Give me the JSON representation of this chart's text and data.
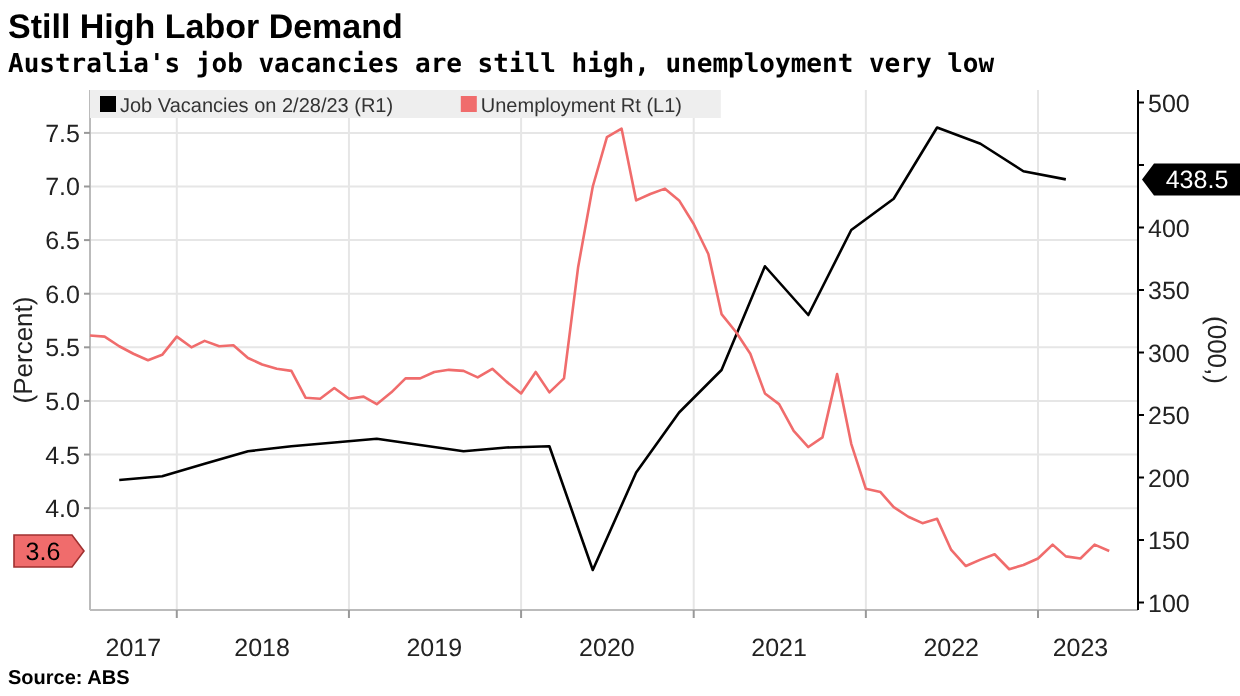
{
  "chart_data": {
    "type": "line",
    "title": "Still High Labor Demand",
    "subtitle": "Australia's job vacancies are still high, unemployment very low",
    "ylabel": "(Percent)",
    "y2label": "(000,)",
    "annotations": [
      "Source: ABS",
      "438.5",
      "3.6"
    ],
    "xlim": [
      "2017-07-01",
      "2023-08-01"
    ],
    "xticks": [
      {
        "value": "2018-01-01",
        "label": null
      },
      {
        "value": "2019-01-01",
        "label": null
      },
      {
        "value": "2020-01-01",
        "label": null
      },
      {
        "value": "2021-01-01",
        "label": null
      },
      {
        "value": "2022-01-01",
        "label": null
      },
      {
        "value": "2023-01-01",
        "label": null
      },
      {
        "value": "2017-10-01",
        "label": "2017"
      },
      {
        "value": "2018-07-01",
        "label": "2018"
      },
      {
        "value": "2019-07-01",
        "label": "2019"
      },
      {
        "value": "2020-07-01",
        "label": "2020"
      },
      {
        "value": "2021-07-01",
        "label": "2021"
      },
      {
        "value": "2022-07-01",
        "label": "2022"
      },
      {
        "value": "2023-04-01",
        "label": "2023"
      }
    ],
    "ylim": [
      3.05,
      7.9
    ],
    "yticks": [
      {
        "value": 4,
        "label": "4.0"
      },
      {
        "value": 4.5,
        "label": "4.5"
      },
      {
        "value": 5,
        "label": "5.0"
      },
      {
        "value": 5.5,
        "label": "5.5"
      },
      {
        "value": 6,
        "label": "6.0"
      },
      {
        "value": 6.5,
        "label": "6.5"
      },
      {
        "value": 7,
        "label": "7.0"
      },
      {
        "value": 7.5,
        "label": "7.5"
      }
    ],
    "y2lim": [
      94,
      510
    ],
    "y2ticks": [
      100,
      150,
      200,
      250,
      300,
      350,
      400,
      {
        "value": 450,
        "label": null
      },
      500
    ],
    "grid": true,
    "legend": "top left",
    "marker": "none",
    "line_style": "solid",
    "series": [
      {
        "name": "Job Vacancies on 2/28/23 (R1)",
        "color": "#000000",
        "axis": "y2",
        "x": [
          "2017-09",
          "2017-12",
          "2018-03",
          "2018-06",
          "2018-09",
          "2018-12",
          "2019-03",
          "2019-06",
          "2019-09",
          "2019-12",
          "2020-03",
          "2020-06",
          "2020-09",
          "2020-12",
          "2021-03",
          "2021-06",
          "2021-09",
          "2021-12",
          "2022-03",
          "2022-06",
          "2022-09",
          "2022-12",
          "2023-03"
        ],
        "values": [
          198,
          201,
          211,
          221,
          225,
          228,
          231,
          226,
          221,
          224,
          225,
          126,
          204,
          252,
          286,
          369,
          330,
          398,
          423,
          480,
          467,
          445,
          438.5
        ]
      },
      {
        "name": "Unemployment Rt (L1)",
        "color": "#f06c6c",
        "x": [
          "2017-07",
          "2017-08",
          "2017-09",
          "2017-10",
          "2017-11",
          "2017-12",
          "2018-01",
          "2018-02",
          "2018-03",
          "2018-04",
          "2018-05",
          "2018-06",
          "2018-07",
          "2018-08",
          "2018-09",
          "2018-10",
          "2018-11",
          "2018-12",
          "2019-01",
          "2019-02",
          "2019-03",
          "2019-04",
          "2019-05",
          "2019-06",
          "2019-07",
          "2019-08",
          "2019-09",
          "2019-10",
          "2019-11",
          "2019-12",
          "2020-01",
          "2020-02",
          "2020-03",
          "2020-04",
          "2020-05",
          "2020-06",
          "2020-07",
          "2020-08",
          "2020-09",
          "2020-10",
          "2020-11",
          "2020-12",
          "2021-01",
          "2021-02",
          "2021-03",
          "2021-04",
          "2021-05",
          "2021-06",
          "2021-07",
          "2021-08",
          "2021-09",
          "2021-10",
          "2021-11",
          "2021-12",
          "2022-01",
          "2022-02",
          "2022-03",
          "2022-04",
          "2022-05",
          "2022-06",
          "2022-07",
          "2022-08",
          "2022-09",
          "2022-10",
          "2022-11",
          "2022-12",
          "2023-01",
          "2023-02",
          "2023-03",
          "2023-04",
          "2023-05",
          "2023-06"
        ],
        "values": [
          5.61,
          5.6,
          5.51,
          5.44,
          5.38,
          5.43,
          5.6,
          5.5,
          5.56,
          5.51,
          5.52,
          5.4,
          5.34,
          5.3,
          5.28,
          5.03,
          5.02,
          5.12,
          5.02,
          5.04,
          4.97,
          5.08,
          5.21,
          5.21,
          5.27,
          5.29,
          5.28,
          5.22,
          5.3,
          5.18,
          5.07,
          5.27,
          5.08,
          5.21,
          6.25,
          7.0,
          7.46,
          7.54,
          6.87,
          6.93,
          6.98,
          6.87,
          6.65,
          6.37,
          5.81,
          5.64,
          5.44,
          5.07,
          4.97,
          4.72,
          4.57,
          4.66,
          5.25,
          4.6,
          4.18,
          4.15,
          4.01,
          3.92,
          3.86,
          3.9,
          3.61,
          3.46,
          3.52,
          3.57,
          3.43,
          3.47,
          3.53,
          3.66,
          3.55,
          3.53,
          3.66,
          3.6
        ]
      }
    ]
  }
}
